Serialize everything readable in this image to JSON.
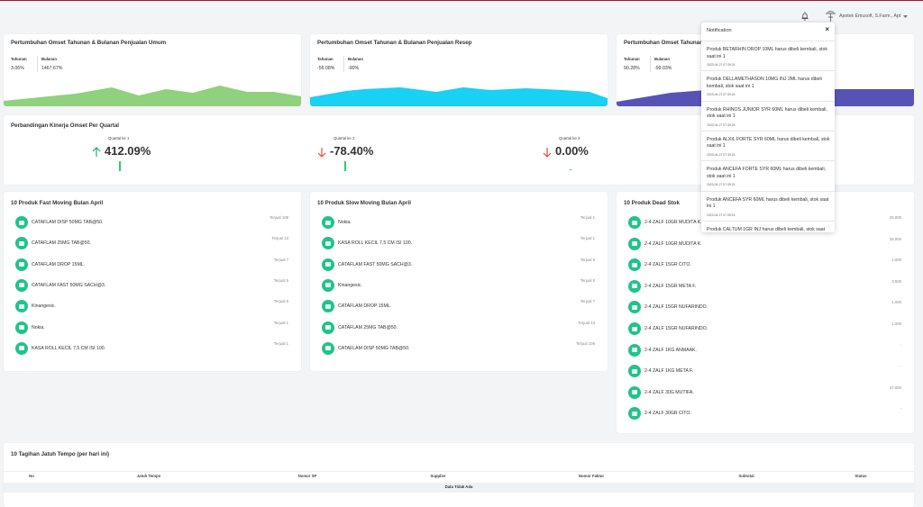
{
  "header": {
    "user": "Apotek Emusoft, S.Farm., Apt"
  },
  "growth_cards": [
    {
      "title": "Pertumbuhan Omset Tahunan & Bulanan Penjualan Umum",
      "yearly_label": "Tahunan",
      "yearly": "3.06%",
      "monthly_label": "Bulanan",
      "monthly": "1467.67%"
    },
    {
      "title": "Pertumbuhan Omset Tahunan & Bulanan Penjualan Resep",
      "yearly_label": "Tahunan",
      "yearly": "-56.08%",
      "monthly_label": "Bulanan",
      "monthly": "-90%"
    },
    {
      "title": "Pertumbuhan Omset Tahunan",
      "yearly_label": "Tahunan",
      "yearly": "90.28%",
      "monthly_label": "Bulanan",
      "monthly": "-99.03%"
    }
  ],
  "quarter_card": {
    "title": "Perbandingan Kinerja Omset Per Quartal",
    "quarters": [
      {
        "label": "Quartal ke 1",
        "value": "412.09%",
        "trend": "up"
      },
      {
        "label": "Quartal ke 2",
        "value": "-78.40%",
        "trend": "down"
      },
      {
        "label": "Quartal ke 3",
        "value": "0.00%",
        "trend": "down"
      }
    ]
  },
  "lists": [
    {
      "title": "10 Produk Fast Moving Bulan April",
      "items": [
        {
          "name": "CATAFLAM DISP 50MG TAB@50.",
          "info": "Terjual 109"
        },
        {
          "name": "CATAFLAM 25MG TAB@50.",
          "info": "Terjual 13"
        },
        {
          "name": "CATAFLAM DROP 15ML.",
          "info": "Terjual 7"
        },
        {
          "name": "CATAFLAM FAST 50MG SACH@3.",
          "info": "Terjual 5"
        },
        {
          "name": "Kinangesic.",
          "info": "Terjual 5"
        },
        {
          "name": "Nokia.",
          "info": "Terjual 1"
        },
        {
          "name": "KASA ROLL KECIL 7,5 CM ISI 100.",
          "info": "Terjual 1"
        }
      ]
    },
    {
      "title": "10 Produk Slow Moving Bulan April",
      "items": [
        {
          "name": "Nokia.",
          "info": "Terjual 1"
        },
        {
          "name": "KASA ROLL KECIL 7,5 CM ISI 100.",
          "info": "Terjual 1"
        },
        {
          "name": "CATAFLAM FAST 50MG SACH@3.",
          "info": "Terjual 5"
        },
        {
          "name": "Kinangesic.",
          "info": "Terjual 5"
        },
        {
          "name": "CATAFLAM DROP 15ML.",
          "info": "Terjual 7"
        },
        {
          "name": "CATAFLAM 25MG TAB@50.",
          "info": "Terjual 13"
        },
        {
          "name": "CATAFLAM DISP 50MG TAB@50.",
          "info": "Terjual 109"
        }
      ]
    },
    {
      "title": "10 Produk Dead Stok",
      "items": [
        {
          "name": "2-4 ZALF 10GR MUDITA K.",
          "info": "26.000"
        },
        {
          "name": "2-4 ZALF 10GR MUDITA K.",
          "info": "26.000"
        },
        {
          "name": "2-4 ZALF 15GR CITO.",
          "info": "1.000"
        },
        {
          "name": "2-4 ZALF 15GR META F.",
          "info": "3.500"
        },
        {
          "name": "2-4 ZALF 15GR NUFARINDO.",
          "info": "1.000"
        },
        {
          "name": "2-4 ZALF 15GR NUFARINDO.",
          "info": "1.000"
        },
        {
          "name": "2-4 ZALF 1KG ANMAAK.",
          "info": "-"
        },
        {
          "name": "2-4 ZALF 1KG META F.",
          "info": "-"
        },
        {
          "name": "2-4 ZALF 30G MUTIFA.",
          "info": "27.000"
        },
        {
          "name": "2-4 ZALF 30GR CITO.",
          "info": "-"
        }
      ]
    }
  ],
  "bills": {
    "title": "10 Tagihan Jatuh Tempo (per hari ini)",
    "columns": [
      "No",
      "Jatuh Tempo",
      "Nomor SP",
      "Supplier",
      "Nomor Faktur",
      "Subtotal",
      "Status"
    ],
    "empty": "Data Tidak Ada"
  },
  "notification": {
    "title": "Notification",
    "close": "×",
    "items": [
      {
        "text": "Produk BETARHIN DROP 10ML harus dibeli kembali, stok saat ini 1",
        "time": "2023-04-27 07:39:24"
      },
      {
        "text": "Produk DELLAMETHASON 10MG INJ 2ML harus dibeli kembali, stok saat ini 1",
        "time": "2023-04-27 07:39:24"
      },
      {
        "text": "Produk RHINOS JUNIOR SYR 60ML harus dibeli kembali, stok saat ini 1",
        "time": "2023-04-27 07:39:24"
      },
      {
        "text": "Produk ALXIL FORTE SYR 60ML harus dibeli kembali, stok saat ini 1",
        "time": "2023-04-27 07:39:24"
      },
      {
        "text": "Produk ANCEFA FORTE SYR 60ML harus dibeli kembali, stok saat ini 1",
        "time": "2023-04-27 07:39:24"
      },
      {
        "text": "Produk ANCEFA SYR 60ML harus dibeli kembali, stok saat ini 1",
        "time": "2023-04-27 07:39:24"
      },
      {
        "text": "Produk CALTUM 1GR INJ harus dibeli kembali, stok saat"
      }
    ]
  }
}
